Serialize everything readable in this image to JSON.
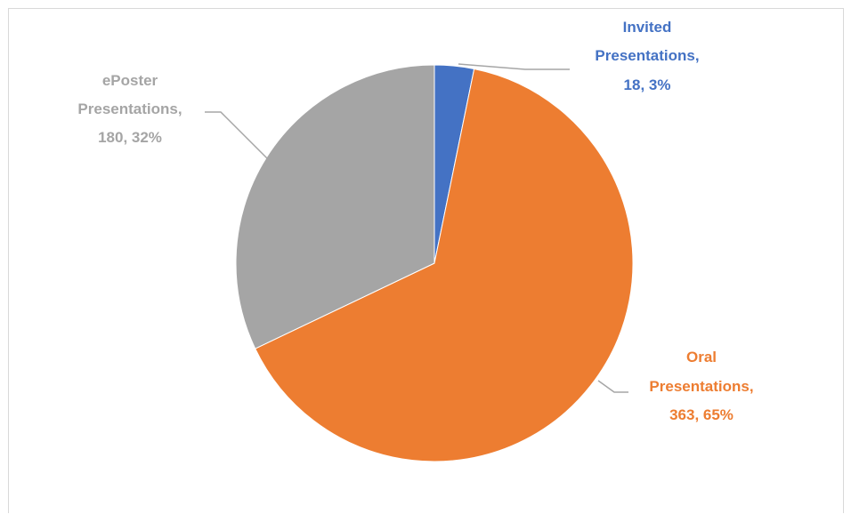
{
  "chart_data": {
    "type": "pie",
    "title": "",
    "slices": [
      {
        "name": "Invited Presentations",
        "value": 18,
        "percent": "3%",
        "color": "#4472c4",
        "label_lines": [
          "Invited",
          "Presentations,",
          "18, 3%"
        ]
      },
      {
        "name": "Oral Presentations",
        "value": 363,
        "percent": "65%",
        "color": "#ed7d31",
        "label_lines": [
          "Oral",
          "Presentations,",
          "363, 65%"
        ]
      },
      {
        "name": "ePoster Presentations",
        "value": 180,
        "percent": "32%",
        "color": "#a5a5a5",
        "label_lines": [
          "ePoster",
          "Presentations,",
          "180, 32%"
        ]
      }
    ],
    "start_angle_deg": 0,
    "direction": "clockwise",
    "legend": "none",
    "leader_line_color": "#a6a6a6"
  }
}
